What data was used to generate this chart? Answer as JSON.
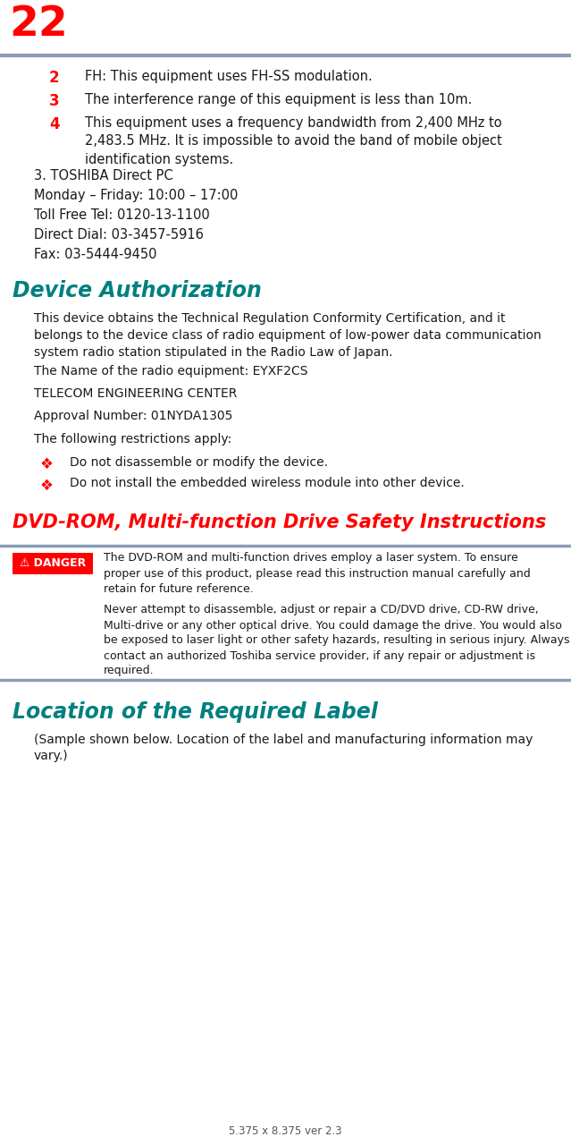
{
  "page_number": "22",
  "footer_text": "5.375 x 8.375 ver 2.3",
  "header_line_color": "#8a9db5",
  "bg_color": "#ffffff",
  "red_color": "#ff0000",
  "black_color": "#1a1a1a",
  "teal_heading_color": "#008080",
  "red_heading_color": "#ff0000",
  "numbered_items": [
    {
      "num": "2",
      "text": "FH: This equipment uses FH-SS modulation."
    },
    {
      "num": "3",
      "text": "The interference range of this equipment is less than 10m."
    },
    {
      "num": "4",
      "text": "This equipment uses a frequency bandwidth from 2,400 MHz to\n2,483.5 MHz. It is impossible to avoid the band of mobile object\nidentification systems."
    }
  ],
  "toshiba_section": [
    "3. TOSHIBA Direct PC",
    "Monday – Friday: 10:00 – 17:00",
    "Toll Free Tel: 0120-13-1100",
    "Direct Dial: 03-3457-5916",
    "Fax: 03-5444-9450"
  ],
  "section1_heading": "Device Authorization",
  "section1_body": [
    "This device obtains the Technical Regulation Conformity Certification, and it\nbelongs to the device class of radio equipment of low-power data communication\nsystem radio station stipulated in the Radio Law of Japan.",
    "The Name of the radio equipment: EYXF2CS",
    "TELECOM ENGINEERING CENTER",
    "Approval Number: 01NYDA1305",
    "The following restrictions apply:"
  ],
  "section1_bullets": [
    "Do not disassemble or modify the device.",
    "Do not install the embedded wireless module into other device."
  ],
  "section2_heading": "DVD-ROM, Multi-function Drive Safety Instructions",
  "danger_label": "⚠ DANGER",
  "danger_box_text1": "The DVD-ROM and multi-function drives employ a laser system. To ensure\nproper use of this product, please read this instruction manual carefully and\nretain for future reference.",
  "danger_box_text2": "Never attempt to disassemble, adjust or repair a CD/DVD drive, CD-RW drive,\nMulti-drive or any other optical drive. You could damage the drive. You would also\nbe exposed to laser light or other safety hazards, resulting in serious injury. Always\ncontact an authorized Toshiba service provider, if any repair or adjustment is\nrequired.",
  "section3_heading": "Location of the Required Label",
  "section3_body": "(Sample shown below. Location of the label and manufacturing information may\nvary.)"
}
